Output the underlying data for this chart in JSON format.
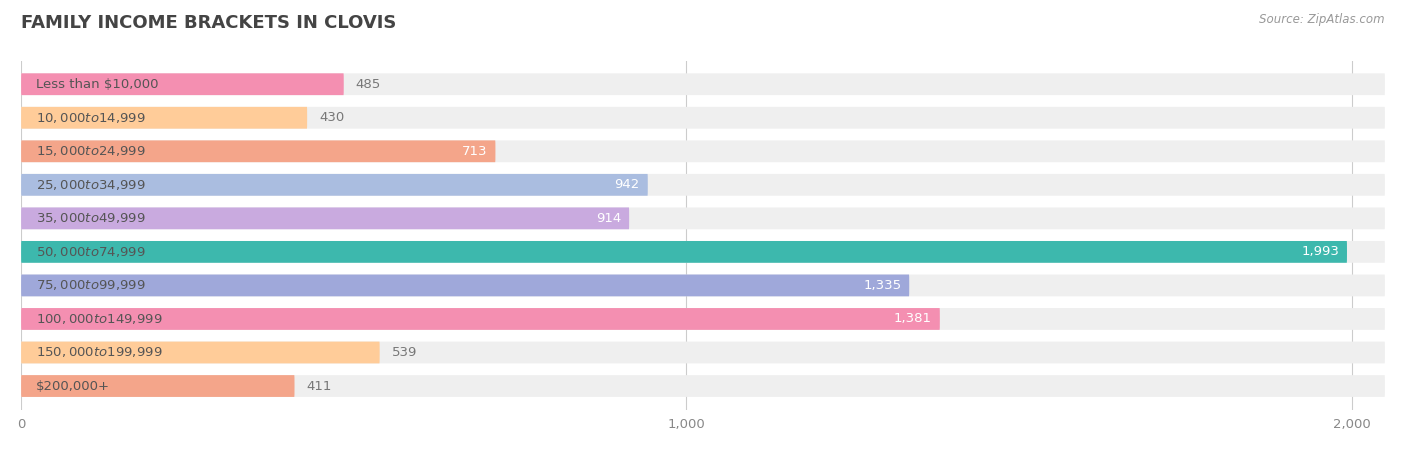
{
  "title": "FAMILY INCOME BRACKETS IN CLOVIS",
  "source": "Source: ZipAtlas.com",
  "categories": [
    "Less than $10,000",
    "$10,000 to $14,999",
    "$15,000 to $24,999",
    "$25,000 to $34,999",
    "$35,000 to $49,999",
    "$50,000 to $74,999",
    "$75,000 to $99,999",
    "$100,000 to $149,999",
    "$150,000 to $199,999",
    "$200,000+"
  ],
  "values": [
    485,
    430,
    713,
    942,
    914,
    1993,
    1335,
    1381,
    539,
    411
  ],
  "bar_colors": [
    "#F48FB1",
    "#FFCC99",
    "#F4A58A",
    "#AABDE0",
    "#C9AADF",
    "#3DB8AD",
    "#9FA8DA",
    "#F48FB1",
    "#FFCC99",
    "#F4A58A"
  ],
  "bar_bg_color": "#EFEFEF",
  "xlim_max": 2050,
  "background_color": "#FFFFFF",
  "title_color": "#444444",
  "label_color": "#555555",
  "value_color_light": "#FFFFFF",
  "value_color_dark": "#777777",
  "source_color": "#999999",
  "title_fontsize": 13,
  "label_fontsize": 9.5,
  "value_fontsize": 9.5,
  "tick_fontsize": 9.5,
  "bar_height": 0.65,
  "xticks": [
    0,
    1000,
    2000
  ],
  "xtick_labels": [
    "0",
    "1,000",
    "2,000"
  ],
  "value_inside_threshold": 600
}
